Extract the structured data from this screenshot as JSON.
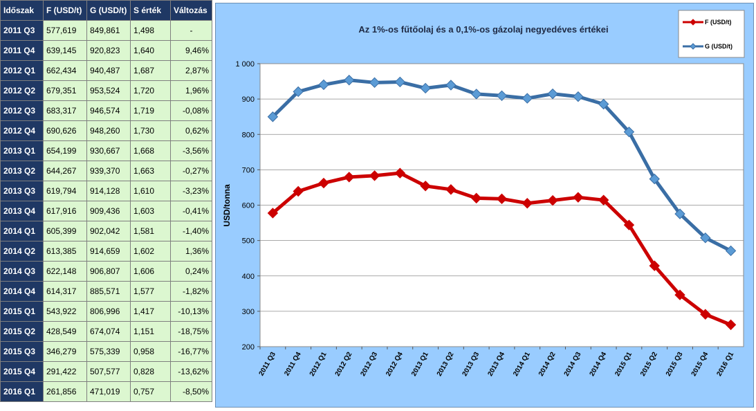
{
  "table": {
    "headers": [
      "Időszak",
      "F (USD/t)",
      "G (USD/t)",
      "S érték",
      "Változás"
    ],
    "rows": [
      [
        "2011 Q3",
        "577,619",
        "849,861",
        "1,498",
        "-"
      ],
      [
        "2011 Q4",
        "639,145",
        "920,823",
        "1,640",
        "9,46%"
      ],
      [
        "2012 Q1",
        "662,434",
        "940,487",
        "1,687",
        "2,87%"
      ],
      [
        "2012 Q2",
        "679,351",
        "953,524",
        "1,720",
        "1,96%"
      ],
      [
        "2012 Q3",
        "683,317",
        "946,574",
        "1,719",
        "-0,08%"
      ],
      [
        "2012 Q4",
        "690,626",
        "948,260",
        "1,730",
        "0,62%"
      ],
      [
        "2013 Q1",
        "654,199",
        "930,667",
        "1,668",
        "-3,56%"
      ],
      [
        "2013 Q2",
        "644,267",
        "939,370",
        "1,663",
        "-0,27%"
      ],
      [
        "2013 Q3",
        "619,794",
        "914,128",
        "1,610",
        "-3,23%"
      ],
      [
        "2013 Q4",
        "617,916",
        "909,436",
        "1,603",
        "-0,41%"
      ],
      [
        "2014 Q1",
        "605,399",
        "902,042",
        "1,581",
        "-1,40%"
      ],
      [
        "2014 Q2",
        "613,385",
        "914,659",
        "1,602",
        "1,36%"
      ],
      [
        "2014 Q3",
        "622,148",
        "906,807",
        "1,606",
        "0,24%"
      ],
      [
        "2014 Q4",
        "614,317",
        "885,571",
        "1,577",
        "-1,82%"
      ],
      [
        "2015 Q1",
        "543,922",
        "806,996",
        "1,417",
        "-10,13%"
      ],
      [
        "2015 Q2",
        "428,549",
        "674,074",
        "1,151",
        "-18,75%"
      ],
      [
        "2015 Q3",
        "346,279",
        "575,339",
        "0,958",
        "-16,77%"
      ],
      [
        "2015 Q4",
        "291,422",
        "507,577",
        "0,828",
        "-13,62%"
      ],
      [
        "2016 Q1",
        "261,856",
        "471,019",
        "0,757",
        "-8,50%"
      ]
    ]
  },
  "chart_data": {
    "type": "line",
    "title": "Az 1%-os fűtőolaj és a 0,1%-os gázolaj negyedéves értékei",
    "xlabel": "",
    "ylabel": "USD/tonna",
    "ylim": [
      200,
      1000
    ],
    "yticks": [
      "200",
      "300",
      "400",
      "500",
      "600",
      "700",
      "800",
      "900",
      "1 000"
    ],
    "categories": [
      "2011 Q3",
      "2011 Q4",
      "2012 Q1",
      "2012 Q2",
      "2012 Q3",
      "2012 Q4",
      "2013 Q1",
      "2013 Q2",
      "2013 Q3",
      "2013 Q4",
      "2014 Q1",
      "2014 Q2",
      "2014 Q3",
      "2014 Q4",
      "2015 Q1",
      "2015 Q2",
      "2015 Q3",
      "2015 Q4",
      "2016 Q1"
    ],
    "series": [
      {
        "name": "F (USD/t)",
        "color": "#cc0000",
        "marker": "diamond",
        "values": [
          577.619,
          639.145,
          662.434,
          679.351,
          683.317,
          690.626,
          654.199,
          644.267,
          619.794,
          617.916,
          605.399,
          613.385,
          622.148,
          614.317,
          543.922,
          428.549,
          346.279,
          291.422,
          261.856
        ]
      },
      {
        "name": "G (USD/t)",
        "color": "#3a6ea5",
        "marker_color": "#5b9bd5",
        "marker": "diamond",
        "values": [
          849.861,
          920.823,
          940.487,
          953.524,
          946.574,
          948.26,
          930.667,
          939.37,
          914.128,
          909.436,
          902.042,
          914.659,
          906.807,
          885.571,
          806.996,
          674.074,
          575.339,
          507.577,
          471.019
        ]
      }
    ],
    "grid": true,
    "legend": "top-right",
    "plot_background": "#ffffff",
    "chart_background": "#99ccff"
  }
}
